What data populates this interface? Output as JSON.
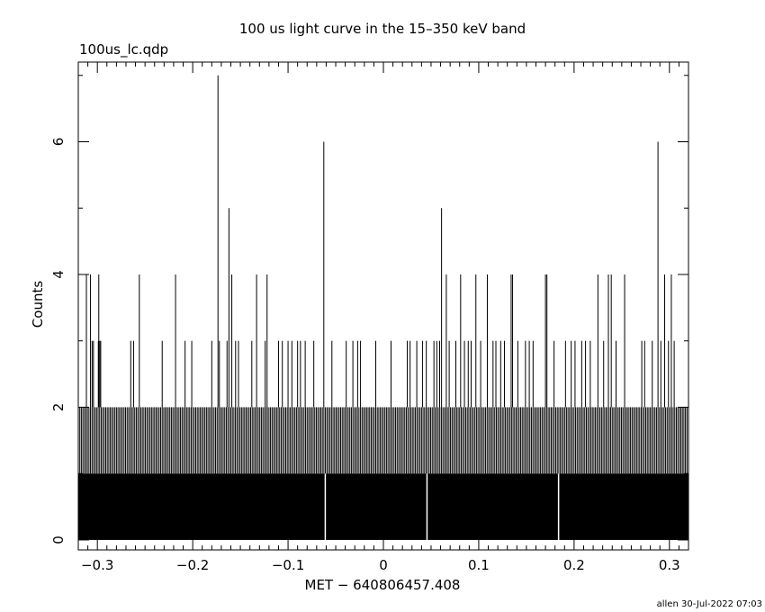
{
  "header": {
    "title": "100 us light curve in the 15–350 keV band",
    "filename": "100us_lc.qdp"
  },
  "footer": {
    "stamp": "allen 30-Jul-2022 07:03"
  },
  "chart_data": {
    "type": "bar",
    "title": "100 us light curve in the 15–350 keV band",
    "xlabel": "MET − 640806457.408",
    "ylabel": "Counts",
    "xlim": [
      -0.32,
      0.32
    ],
    "ylim": [
      -0.15,
      7.2
    ],
    "xticks": [
      -0.3,
      -0.2,
      -0.1,
      0,
      0.1,
      0.2,
      0.3
    ],
    "xtick_labels": [
      "−0.3",
      "−0.2",
      "−0.1",
      "0",
      "0.1",
      "0.2",
      "0.3"
    ],
    "yticks": [
      0,
      2,
      4,
      6
    ],
    "ytick_labels": [
      "0",
      "2",
      "4",
      "6"
    ],
    "bin_width": 0.0001,
    "baseline": 1,
    "gaps": [
      -0.0612,
      0.0455,
      0.1835
    ],
    "series": [
      {
        "values_above_baseline": [
          [
            -0.3115,
            4
          ],
          [
            -0.3072,
            4
          ],
          [
            -0.3055,
            3
          ],
          [
            -0.3041,
            3
          ],
          [
            -0.299,
            3
          ],
          [
            -0.2985,
            4
          ],
          [
            -0.2975,
            3
          ],
          [
            -0.2965,
            3
          ],
          [
            -0.265,
            3
          ],
          [
            -0.262,
            3
          ],
          [
            -0.256,
            4
          ],
          [
            -0.218,
            4
          ],
          [
            -0.232,
            3
          ],
          [
            -0.208,
            3
          ],
          [
            -0.201,
            3
          ],
          [
            -0.18,
            3
          ],
          [
            -0.1735,
            7
          ],
          [
            -0.172,
            3
          ],
          [
            -0.164,
            3
          ],
          [
            -0.162,
            5
          ],
          [
            -0.159,
            4
          ],
          [
            -0.155,
            3
          ],
          [
            -0.152,
            3
          ],
          [
            -0.138,
            3
          ],
          [
            -0.133,
            4
          ],
          [
            -0.124,
            3
          ],
          [
            -0.122,
            4
          ],
          [
            -0.11,
            3
          ],
          [
            -0.106,
            3
          ],
          [
            -0.1,
            3
          ],
          [
            -0.096,
            3
          ],
          [
            -0.09,
            3
          ],
          [
            -0.087,
            3
          ],
          [
            -0.082,
            3
          ],
          [
            -0.073,
            3
          ],
          [
            -0.0625,
            6
          ],
          [
            -0.054,
            3
          ],
          [
            -0.039,
            3
          ],
          [
            -0.032,
            3
          ],
          [
            -0.027,
            3
          ],
          [
            -0.024,
            3
          ],
          [
            -0.008,
            3
          ],
          [
            0.008,
            3
          ],
          [
            0.025,
            3
          ],
          [
            0.028,
            3
          ],
          [
            0.035,
            3
          ],
          [
            0.041,
            3
          ],
          [
            0.045,
            3
          ],
          [
            0.053,
            3
          ],
          [
            0.056,
            3
          ],
          [
            0.059,
            3
          ],
          [
            0.061,
            5
          ],
          [
            0.066,
            4
          ],
          [
            0.069,
            3
          ],
          [
            0.076,
            3
          ],
          [
            0.081,
            4
          ],
          [
            0.085,
            3
          ],
          [
            0.089,
            3
          ],
          [
            0.092,
            3
          ],
          [
            0.097,
            4
          ],
          [
            0.102,
            3
          ],
          [
            0.109,
            4
          ],
          [
            0.115,
            3
          ],
          [
            0.118,
            3
          ],
          [
            0.123,
            3
          ],
          [
            0.127,
            3
          ],
          [
            0.134,
            4
          ],
          [
            0.1355,
            4
          ],
          [
            0.141,
            3
          ],
          [
            0.149,
            3
          ],
          [
            0.153,
            3
          ],
          [
            0.157,
            3
          ],
          [
            0.17,
            4
          ],
          [
            0.1715,
            4
          ],
          [
            0.179,
            3
          ],
          [
            0.191,
            3
          ],
          [
            0.197,
            3
          ],
          [
            0.201,
            3
          ],
          [
            0.208,
            3
          ],
          [
            0.212,
            3
          ],
          [
            0.217,
            3
          ],
          [
            0.225,
            4
          ],
          [
            0.231,
            3
          ],
          [
            0.236,
            4
          ],
          [
            0.239,
            4
          ],
          [
            0.244,
            3
          ],
          [
            0.253,
            4
          ],
          [
            0.271,
            3
          ],
          [
            0.274,
            3
          ],
          [
            0.282,
            3
          ],
          [
            0.288,
            6
          ],
          [
            0.291,
            3
          ],
          [
            0.295,
            4
          ],
          [
            0.299,
            3
          ],
          [
            0.302,
            4
          ],
          [
            0.305,
            3
          ]
        ]
      }
    ]
  }
}
